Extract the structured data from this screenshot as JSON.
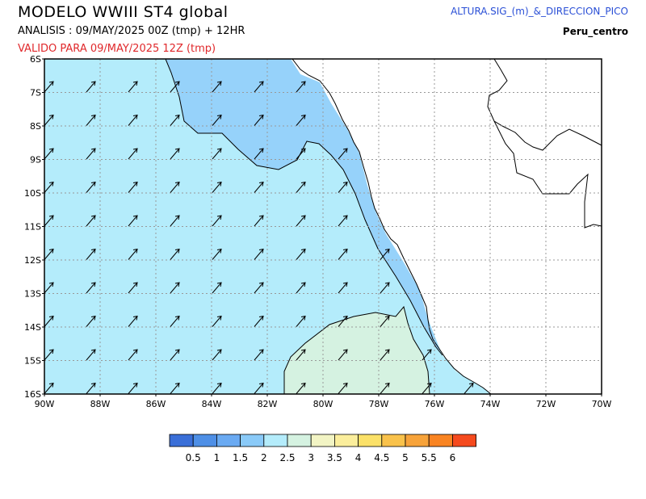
{
  "header": {
    "title": "MODELO  WWIII  ST4  global",
    "analysis": "ANALISIS : 09/MAY/2025 00Z  (tmp) + 12HR",
    "valid": "VALIDO PARA  09/MAY/2025 12Z  (tmp)",
    "variable": "ALTURA.SIG_(m)_&_DIRECCION_PICO",
    "region": "Peru_centro"
  },
  "map": {
    "lat_labels": [
      "6S",
      "7S",
      "8S",
      "9S",
      "10S",
      "11S",
      "12S",
      "13S",
      "14S",
      "15S",
      "16S"
    ],
    "lon_labels": [
      "90W",
      "88W",
      "86W",
      "84W",
      "82W",
      "80W",
      "78W",
      "76W",
      "74W",
      "72W",
      "70W"
    ],
    "colors": {
      "sea_main": "#b4ecfb",
      "sea_coastal": "#96d2fa",
      "sea_south": "#d5f2e1",
      "coast_strip": "#7dbbf6"
    }
  },
  "colorbar": {
    "colors": [
      "#3a6fd8",
      "#4e8fe6",
      "#6aaaf2",
      "#8acaf8",
      "#b4ecfb",
      "#d5f2e1",
      "#f2f4c4",
      "#fbee9c",
      "#fbe168",
      "#f9c24b",
      "#f7a33a",
      "#f98422",
      "#f54a1e"
    ],
    "labels": [
      "0.5",
      "1",
      "1.5",
      "2",
      "2.5",
      "3",
      "3.5",
      "4",
      "4.5",
      "5",
      "5.5",
      "6"
    ]
  }
}
